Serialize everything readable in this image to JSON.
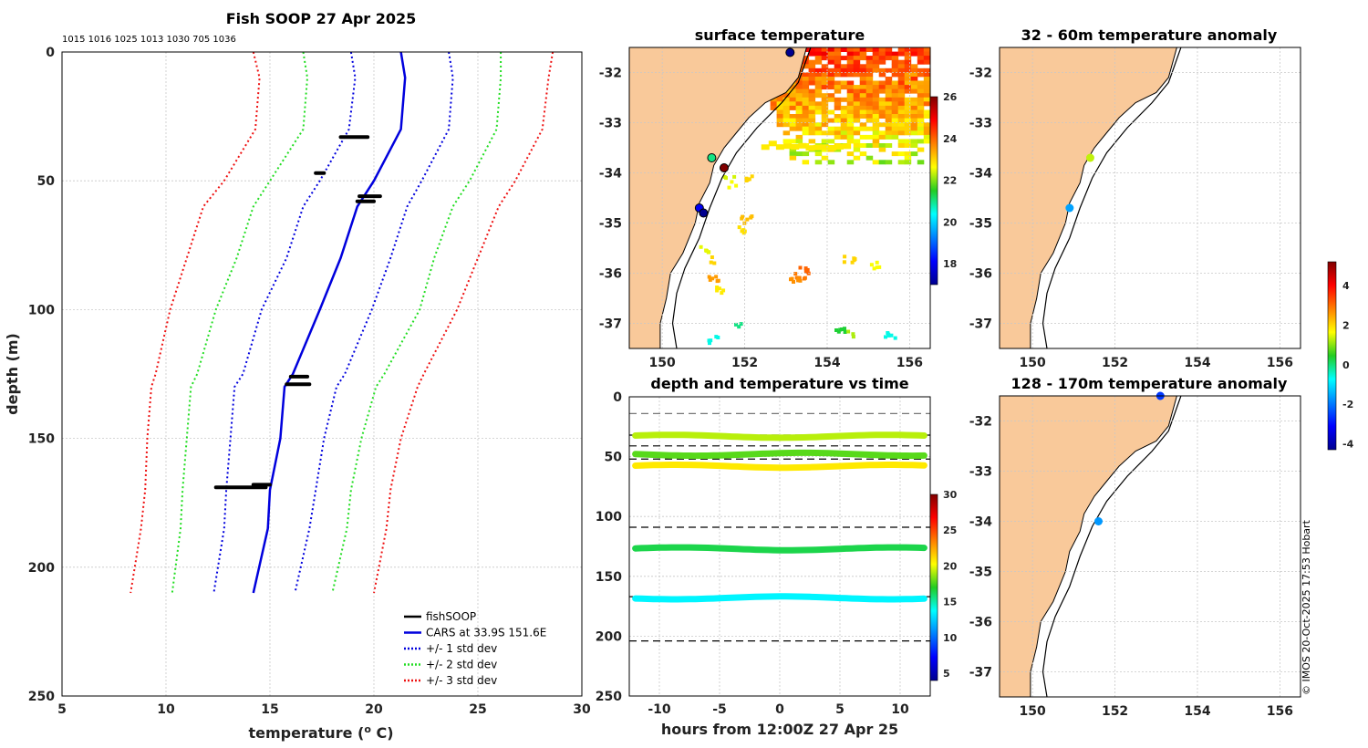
{
  "chart_data": [
    {
      "type": "line",
      "title": "Fish SOOP 27 Apr 2025",
      "subtitle": "1015 1016 1025 1013 1030 705 1036",
      "xlabel": "temperature (",
      "xlabel_sup": "o",
      "xlabel_unit": " C)",
      "ylabel": "depth (m)",
      "xlim": [
        5,
        30
      ],
      "ylim": [
        250,
        0
      ],
      "xticks": [
        5,
        10,
        15,
        20,
        25,
        30
      ],
      "yticks": [
        0,
        50,
        100,
        150,
        200,
        250
      ],
      "legend": {
        "position": "bottom-right",
        "entries": [
          {
            "label": "fishSOOP",
            "color": "#000000",
            "style": "solid"
          },
          {
            "label": "CARS at 33.9S 151.6E",
            "color": "#0000dd",
            "style": "solid"
          },
          {
            "label": "+/- 1 std dev",
            "color": "#0000dd",
            "style": "dotted"
          },
          {
            "label": "+/- 2 std dev",
            "color": "#22dd22",
            "style": "dotted"
          },
          {
            "label": "+/- 3 std dev",
            "color": "#ee1111",
            "style": "dotted"
          }
        ]
      },
      "depths": [
        0,
        10,
        30,
        50,
        60,
        80,
        100,
        125,
        130,
        150,
        170,
        185,
        210
      ],
      "series": [
        {
          "name": "CARS at 33.9S 151.6E",
          "color": "#0000dd",
          "style": "solid",
          "values": [
            21.3,
            21.5,
            21.3,
            20.0,
            19.2,
            18.4,
            17.4,
            16.1,
            15.7,
            15.5,
            15.0,
            14.9,
            14.2
          ]
        },
        {
          "name": "-1 std",
          "color": "#0000dd",
          "style": "dotted",
          "values": [
            18.9,
            19.1,
            18.8,
            17.4,
            16.6,
            15.8,
            14.6,
            13.7,
            13.3,
            13.1,
            12.9,
            12.8,
            12.3
          ]
        },
        {
          "name": "+1 std",
          "color": "#0000dd",
          "style": "dotted",
          "values": [
            23.6,
            23.8,
            23.6,
            22.3,
            21.6,
            20.8,
            19.9,
            18.6,
            18.2,
            17.6,
            17.2,
            16.9,
            16.2
          ]
        },
        {
          "name": "-2 std",
          "color": "#22dd22",
          "style": "dotted",
          "values": [
            16.6,
            16.8,
            16.6,
            15.0,
            14.2,
            13.4,
            12.4,
            11.5,
            11.2,
            11.0,
            10.8,
            10.7,
            10.3
          ]
        },
        {
          "name": "+2 std",
          "color": "#22dd22",
          "style": "dotted",
          "values": [
            26.1,
            26.1,
            25.9,
            24.6,
            23.8,
            22.9,
            22.2,
            20.5,
            20.1,
            19.4,
            18.9,
            18.7,
            18.0
          ]
        },
        {
          "name": "-3 std",
          "color": "#ee1111",
          "style": "dotted",
          "values": [
            14.2,
            14.5,
            14.3,
            12.8,
            11.8,
            11.0,
            10.2,
            9.5,
            9.3,
            9.1,
            9.0,
            8.8,
            8.3
          ]
        },
        {
          "name": "+3 std",
          "color": "#ee1111",
          "style": "dotted",
          "values": [
            28.6,
            28.4,
            28.1,
            26.8,
            26.0,
            25.0,
            24.0,
            22.4,
            22.1,
            21.3,
            20.8,
            20.6,
            20.0
          ]
        }
      ],
      "fishSOOP_segments": [
        {
          "depth": 33,
          "tmin": 18.4,
          "tmax": 19.7
        },
        {
          "depth": 47,
          "tmin": 17.2,
          "tmax": 17.6
        },
        {
          "depth": 56,
          "tmin": 19.3,
          "tmax": 20.3
        },
        {
          "depth": 58,
          "tmin": 19.2,
          "tmax": 20.0
        },
        {
          "depth": 126,
          "tmin": 16.0,
          "tmax": 16.8
        },
        {
          "depth": 129,
          "tmin": 15.8,
          "tmax": 16.9
        },
        {
          "depth": 168,
          "tmin": 14.2,
          "tmax": 15.0
        },
        {
          "depth": 169,
          "tmin": 12.4,
          "tmax": 14.8
        }
      ]
    },
    {
      "type": "heatmap",
      "title": "surface temperature",
      "xlim": [
        149.2,
        156.5
      ],
      "ylim": [
        -37.5,
        -31.5
      ],
      "xticks": [
        150,
        152,
        154,
        156
      ],
      "yticks": [
        -32,
        -33,
        -34,
        -35,
        -36,
        -37
      ],
      "colorbar": {
        "min": 17,
        "max": 26,
        "ticks": [
          18,
          20,
          22,
          24,
          26
        ]
      },
      "markers": [
        {
          "lon": 153.1,
          "lat": -31.6,
          "value": 17
        },
        {
          "lon": 151.2,
          "lat": -33.7,
          "value": 21
        },
        {
          "lon": 151.5,
          "lat": -33.9,
          "value": 26
        },
        {
          "lon": 150.9,
          "lat": -34.7,
          "value": 18
        },
        {
          "lon": 151.0,
          "lat": -34.8,
          "value": 17
        }
      ]
    },
    {
      "type": "scatter",
      "title": "depth and temperature vs time",
      "xlabel": "hours from 12:00Z 27 Apr 25",
      "xlim": [
        -12.5,
        12.5
      ],
      "ylim": [
        250,
        0
      ],
      "xticks": [
        -10,
        -5,
        0,
        5,
        10
      ],
      "yticks": [
        0,
        50,
        100,
        150,
        200,
        250
      ],
      "colorbar": {
        "min": 4,
        "max": 30,
        "ticks": [
          5,
          10,
          15,
          20,
          25,
          30
        ]
      },
      "dashed_depths": [
        14,
        32,
        41,
        52,
        109,
        167,
        204
      ],
      "tracks": [
        {
          "depth": 33,
          "temp": 19.2
        },
        {
          "depth": 48,
          "temp": 17.8
        },
        {
          "depth": 58,
          "temp": 20.8
        },
        {
          "depth": 127,
          "temp": 16.4
        },
        {
          "depth": 168,
          "temp": 13.5
        }
      ]
    },
    {
      "type": "scatter",
      "title": "32 - 60m temperature anomaly",
      "xlim": [
        149.2,
        156.5
      ],
      "ylim": [
        -37.5,
        -31.5
      ],
      "xticks": [
        150,
        152,
        154,
        156
      ],
      "yticks": [
        -32,
        -33,
        -34,
        -35,
        -36,
        -37
      ],
      "points": [
        {
          "lon": 151.4,
          "lat": -33.7,
          "anomaly": 1.3
        },
        {
          "lon": 150.9,
          "lat": -34.7,
          "anomaly": -1.6
        }
      ]
    },
    {
      "type": "scatter",
      "title": "128 - 170m temperature anomaly",
      "xlim": [
        149.2,
        156.5
      ],
      "ylim": [
        -37.5,
        -31.5
      ],
      "xticks": [
        150,
        152,
        154,
        156
      ],
      "yticks": [
        -32,
        -33,
        -34,
        -35,
        -36,
        -37
      ],
      "points": [
        {
          "lon": 153.1,
          "lat": -31.5,
          "anomaly": -2.6
        },
        {
          "lon": 151.6,
          "lat": -34.0,
          "anomaly": -1.7
        }
      ]
    }
  ],
  "anomaly_colorbar": {
    "min": -4.3,
    "max": 5.2,
    "ticks": [
      -4,
      -2,
      0,
      2,
      4
    ]
  },
  "colors": {
    "land": "#f9c99a",
    "grid": "#c8c8c8"
  },
  "credit": "© IMOS 20-Oct-2025 17:53 Hobart"
}
